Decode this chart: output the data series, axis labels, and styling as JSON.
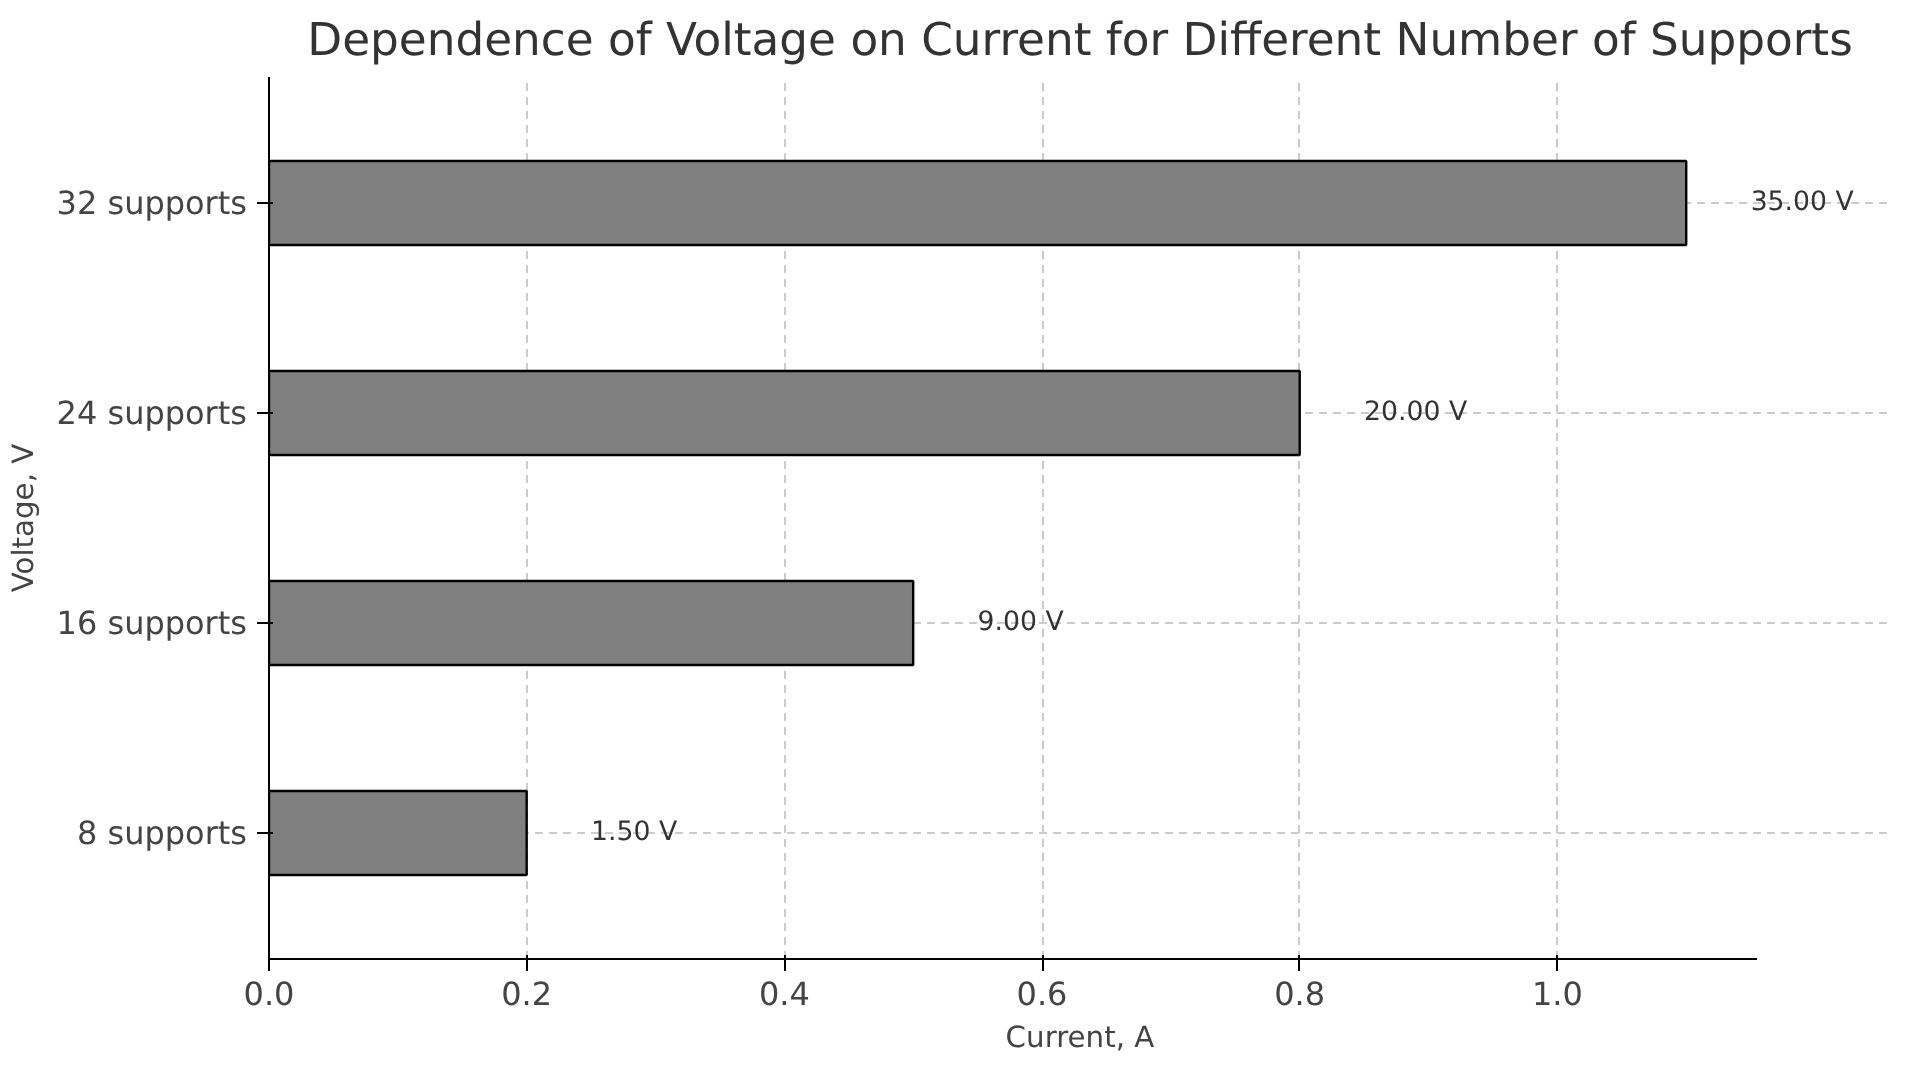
{
  "chart_data": {
    "type": "bar",
    "orientation": "horizontal",
    "title": "Dependence of Voltage on Current for Different Number of Supports",
    "xlabel": "Current, A",
    "ylabel": "Voltage, V",
    "categories": [
      "32 supports",
      "24 supports",
      "16 supports",
      "8 supports"
    ],
    "values": [
      1.1,
      0.8,
      0.5,
      0.2
    ],
    "color": "#808080",
    "annotations": [
      {
        "text": "35.00 V",
        "x": 1.1,
        "y": "32 supports"
      },
      {
        "text": "20.00 V",
        "x": 0.8,
        "y": "24 supports"
      },
      {
        "text": "9.00 V",
        "x": 0.5,
        "y": "16 supports"
      },
      {
        "text": "1.50 V",
        "x": 0.2,
        "y": "8 supports"
      }
    ],
    "xlim": [
      0,
      1.155
    ],
    "xticks": [
      {
        "value": 0,
        "label": "0.0"
      },
      {
        "value": 0.2,
        "label": "0.2"
      },
      {
        "value": 0.4,
        "label": "0.4"
      },
      {
        "value": 0.6,
        "label": "0.6"
      },
      {
        "value": 0.8,
        "label": "0.8"
      },
      {
        "value": 1.0,
        "label": "1.0"
      }
    ],
    "grid": true
  }
}
